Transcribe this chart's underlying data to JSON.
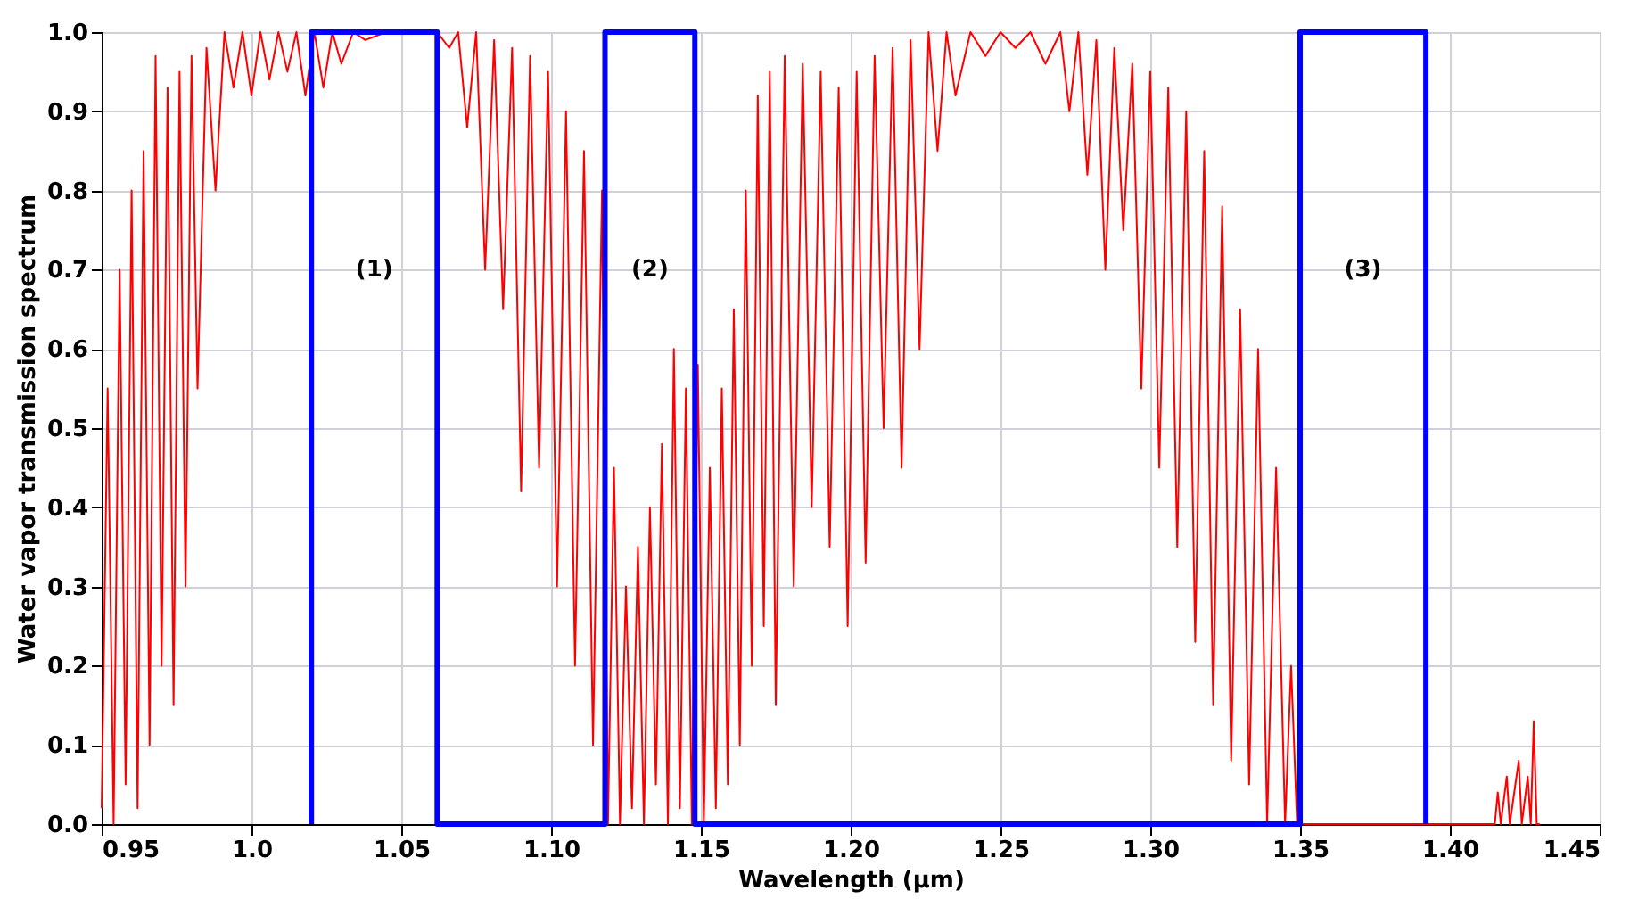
{
  "chart_data": {
    "type": "line",
    "xlabel": "Wavelength (μm)",
    "ylabel": "Water vapor transmission spectrum",
    "xlim": [
      0.95,
      1.45
    ],
    "xticks": [
      {
        "value": 0.95,
        "label": "0.95"
      },
      {
        "value": 1.0,
        "label": "1.0"
      },
      {
        "value": 1.05,
        "label": "1.05"
      },
      {
        "value": 1.1,
        "label": "1.10"
      },
      {
        "value": 1.15,
        "label": "1.15"
      },
      {
        "value": 1.2,
        "label": "1.20"
      },
      {
        "value": 1.25,
        "label": "1.25"
      },
      {
        "value": 1.3,
        "label": "1.30"
      },
      {
        "value": 1.35,
        "label": "1.35"
      },
      {
        "value": 1.4,
        "label": "1.40"
      },
      {
        "value": 1.45,
        "label": "1.45"
      }
    ],
    "ylim": [
      0,
      1
    ],
    "yticks": [
      {
        "value": 0,
        "label": "0.0"
      },
      {
        "value": 0.1,
        "label": "0.1"
      },
      {
        "value": 0.2,
        "label": "0.2"
      },
      {
        "value": 0.3,
        "label": "0.3"
      },
      {
        "value": 0.4,
        "label": "0.4"
      },
      {
        "value": 0.5,
        "label": "0.5"
      },
      {
        "value": 0.6,
        "label": "0.6"
      },
      {
        "value": 0.7,
        "label": "0.7"
      },
      {
        "value": 0.8,
        "label": "0.8"
      },
      {
        "value": 0.9,
        "label": "0.9"
      },
      {
        "value": 1,
        "label": "1.0"
      }
    ],
    "grid": true,
    "marker": "none",
    "line_style": "solid",
    "annotations": [
      "(1)",
      "(2)",
      "(3)"
    ],
    "series": [
      {
        "color": "#ff0000",
        "x": [
          0.95,
          0.952,
          0.954,
          0.956,
          0.958,
          0.96,
          0.962,
          0.964,
          0.966,
          0.968,
          0.97,
          0.972,
          0.974,
          0.976,
          0.978,
          0.98,
          0.982,
          0.985,
          0.988,
          0.991,
          0.994,
          0.997,
          1.0,
          1.003,
          1.006,
          1.009,
          1.012,
          1.015,
          1.018,
          1.021,
          1.024,
          1.027,
          1.03,
          1.034,
          1.038,
          1.045,
          1.055,
          1.062,
          1.066,
          1.069,
          1.072,
          1.075,
          1.078,
          1.081,
          1.084,
          1.087,
          1.09,
          1.093,
          1.096,
          1.099,
          1.102,
          1.105,
          1.108,
          1.111,
          1.114,
          1.117,
          1.119,
          1.121,
          1.123,
          1.125,
          1.127,
          1.129,
          1.131,
          1.133,
          1.135,
          1.137,
          1.139,
          1.141,
          1.143,
          1.145,
          1.147,
          1.149,
          1.151,
          1.153,
          1.155,
          1.157,
          1.159,
          1.161,
          1.163,
          1.165,
          1.167,
          1.169,
          1.171,
          1.173,
          1.175,
          1.178,
          1.181,
          1.184,
          1.187,
          1.19,
          1.193,
          1.196,
          1.199,
          1.202,
          1.205,
          1.208,
          1.211,
          1.214,
          1.217,
          1.22,
          1.223,
          1.226,
          1.229,
          1.232,
          1.235,
          1.24,
          1.245,
          1.25,
          1.255,
          1.26,
          1.265,
          1.27,
          1.273,
          1.276,
          1.279,
          1.282,
          1.285,
          1.288,
          1.291,
          1.294,
          1.297,
          1.3,
          1.303,
          1.306,
          1.309,
          1.312,
          1.315,
          1.318,
          1.321,
          1.324,
          1.327,
          1.33,
          1.333,
          1.336,
          1.339,
          1.342,
          1.345,
          1.347,
          1.349,
          1.352,
          1.4,
          1.415,
          1.416,
          1.417,
          1.419,
          1.42,
          1.423,
          1.424,
          1.426,
          1.427,
          1.428,
          1.429,
          1.43
        ],
        "values": [
          0.02,
          0.55,
          0.0,
          0.7,
          0.05,
          0.8,
          0.02,
          0.85,
          0.1,
          0.97,
          0.2,
          0.93,
          0.15,
          0.95,
          0.3,
          0.97,
          0.55,
          0.98,
          0.8,
          1.0,
          0.93,
          1.0,
          0.92,
          1.0,
          0.94,
          1.0,
          0.95,
          1.0,
          0.92,
          1.0,
          0.93,
          1.0,
          0.96,
          1.0,
          0.99,
          1.0,
          1.0,
          1.0,
          0.98,
          1.0,
          0.88,
          1.0,
          0.7,
          0.99,
          0.65,
          0.98,
          0.42,
          0.97,
          0.45,
          0.95,
          0.3,
          0.9,
          0.2,
          0.85,
          0.1,
          0.8,
          0.0,
          0.45,
          0.0,
          0.3,
          0.02,
          0.35,
          0.0,
          0.4,
          0.05,
          0.48,
          0.0,
          0.6,
          0.02,
          0.55,
          0.0,
          0.58,
          0.0,
          0.45,
          0.02,
          0.55,
          0.05,
          0.65,
          0.1,
          0.8,
          0.2,
          0.92,
          0.25,
          0.95,
          0.15,
          0.97,
          0.3,
          0.96,
          0.4,
          0.95,
          0.35,
          0.93,
          0.25,
          0.95,
          0.33,
          0.97,
          0.5,
          0.98,
          0.45,
          0.99,
          0.6,
          1.0,
          0.85,
          1.0,
          0.92,
          1.0,
          0.97,
          1.0,
          0.98,
          1.0,
          0.96,
          1.0,
          0.9,
          1.0,
          0.82,
          0.99,
          0.7,
          0.98,
          0.75,
          0.96,
          0.55,
          0.95,
          0.45,
          0.93,
          0.35,
          0.9,
          0.23,
          0.85,
          0.15,
          0.78,
          0.08,
          0.65,
          0.05,
          0.6,
          0.0,
          0.45,
          0.0,
          0.2,
          0.0,
          0.0,
          0.0,
          0.0,
          0.04,
          0.0,
          0.06,
          0.0,
          0.08,
          0.0,
          0.06,
          0.0,
          0.13,
          0.0,
          0.0
        ]
      },
      {
        "color": "#0000ff",
        "x": [
          1.02,
          1.02,
          1.062,
          1.062,
          1.118,
          1.118,
          1.148,
          1.148,
          1.35,
          1.35,
          1.392,
          1.392
        ],
        "values": [
          0,
          1,
          1,
          0,
          0,
          1,
          1,
          0,
          0,
          1,
          1,
          0
        ]
      }
    ]
  }
}
